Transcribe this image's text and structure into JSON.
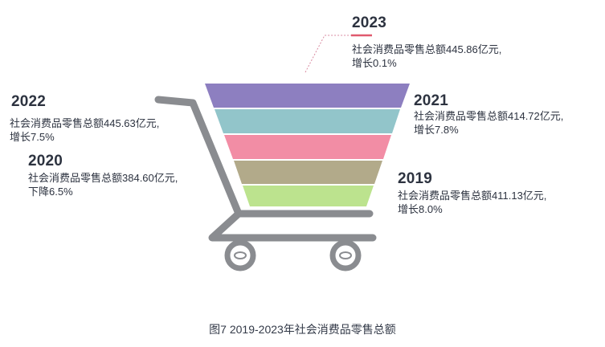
{
  "chart_data": {
    "type": "funnel",
    "title": "图7 2019-2023年社会消费品零售总额",
    "entries": [
      {
        "year": "2023",
        "description": "社会消费品零售总额445.86亿元,",
        "change": "增长0.1%",
        "value": 445.86,
        "change_pct": 0.1
      },
      {
        "year": "2022",
        "description": "社会消费品零售总额445.63亿元,",
        "change": "增长7.5%",
        "value": 445.63,
        "change_pct": 7.5
      },
      {
        "year": "2021",
        "description": "社会消费品零售总额414.72亿元,",
        "change": "增长7.8%",
        "value": 414.72,
        "change_pct": 7.8
      },
      {
        "year": "2020",
        "description": "社会消费品零售总额384.60亿元,",
        "change": "下降6.5%",
        "value": 384.6,
        "change_pct": -6.5
      },
      {
        "year": "2019",
        "description": "社会消费品零售总额411.13亿元,",
        "change": "增长8.0%",
        "value": 411.13,
        "change_pct": 8.0
      }
    ],
    "colors": {
      "2023": "#8d7fc0",
      "2021": "#92c5ca",
      "2022": "#f28da5",
      "2020": "#b2aa8a",
      "2019": "#bce38e",
      "cart": "#8a8c90",
      "accent": "#e05a6e"
    }
  }
}
